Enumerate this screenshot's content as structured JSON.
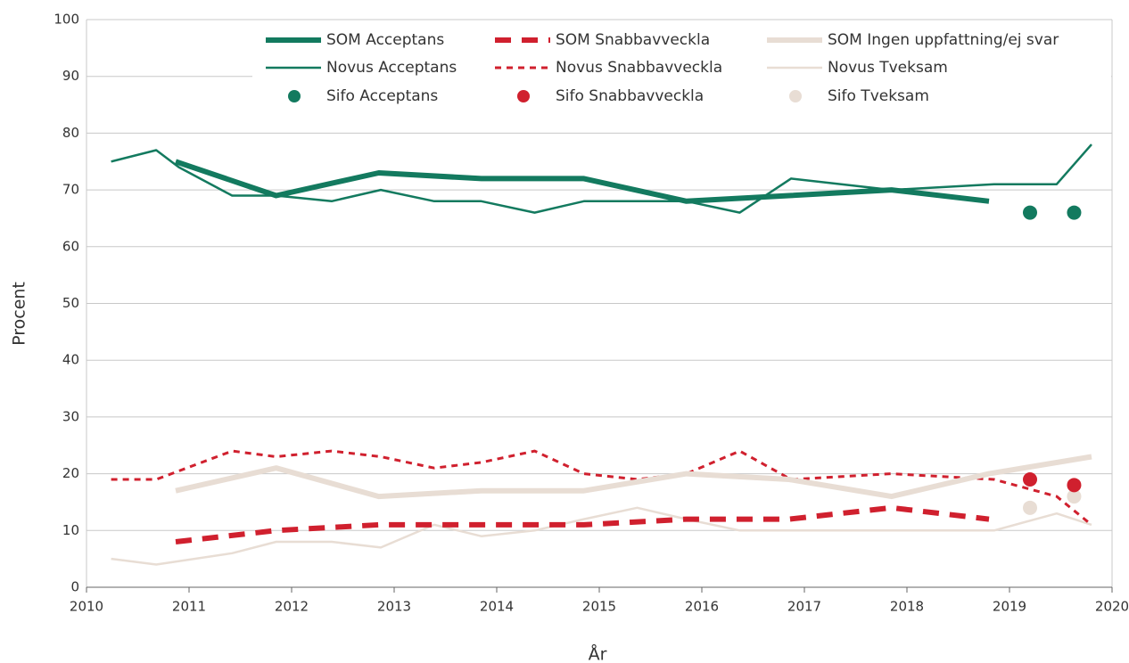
{
  "chart_data": {
    "type": "line",
    "x_label": "År",
    "y_label": "Procent",
    "xlim": [
      2010,
      2020
    ],
    "xticks": [
      2010,
      2011,
      2012,
      2013,
      2014,
      2015,
      2016,
      2017,
      2018,
      2019,
      2020
    ],
    "ylim": [
      0,
      100
    ],
    "yticks": [
      0,
      10,
      20,
      30,
      40,
      50,
      60,
      70,
      80,
      90,
      100
    ],
    "grid": true,
    "series": [
      {
        "name": "SOM Acceptans",
        "color": "#137a5f",
        "width": 6,
        "dash": "none",
        "x": [
          2010.87,
          2011.85,
          2012.85,
          2013.85,
          2014.85,
          2015.85,
          2016.85,
          2017.85,
          2018.8
        ],
        "values": [
          75,
          69,
          73,
          72,
          72,
          68,
          69,
          70,
          68
        ]
      },
      {
        "name": "SOM Snabbavveckla",
        "color": "#d0202e",
        "width": 6,
        "dash": "18 12",
        "x": [
          2010.87,
          2011.85,
          2012.85,
          2013.85,
          2014.85,
          2015.85,
          2016.85,
          2017.85,
          2018.8
        ],
        "values": [
          8,
          10,
          11,
          11,
          11,
          12,
          12,
          14,
          12
        ]
      },
      {
        "name": "SOM Ingen uppfattning/ej svar",
        "color": "#e8ddd4",
        "width": 6,
        "dash": "none",
        "x": [
          2010.87,
          2011.85,
          2012.85,
          2013.85,
          2014.85,
          2015.85,
          2016.85,
          2017.85,
          2018.8,
          2019.8
        ],
        "values": [
          17,
          21,
          16,
          17,
          17,
          20,
          19,
          16,
          20,
          23
        ]
      },
      {
        "name": "Novus Acceptans",
        "color": "#137a5f",
        "width": 2.5,
        "dash": "none",
        "x": [
          2010.24,
          2010.68,
          2010.9,
          2011.42,
          2011.85,
          2012.39,
          2012.87,
          2013.39,
          2013.85,
          2014.37,
          2014.85,
          2015.37,
          2015.85,
          2016.37,
          2016.87,
          2017.85,
          2018.85,
          2019.46,
          2019.8
        ],
        "values": [
          75,
          77,
          74,
          69,
          69,
          68,
          70,
          68,
          68,
          66,
          68,
          68,
          68,
          66,
          72,
          70,
          71,
          71,
          78
        ]
      },
      {
        "name": "Novus Snabbavveckla",
        "color": "#d0202e",
        "width": 3,
        "dash": "7 6",
        "x": [
          2010.24,
          2010.68,
          2011.42,
          2011.85,
          2012.39,
          2012.87,
          2013.39,
          2013.85,
          2014.37,
          2014.85,
          2015.37,
          2015.85,
          2016.37,
          2016.87,
          2017.85,
          2018.85,
          2019.46,
          2019.8
        ],
        "values": [
          19,
          19,
          24,
          23,
          24,
          23,
          21,
          22,
          24,
          20,
          19,
          20,
          24,
          19,
          20,
          19,
          16,
          11
        ]
      },
      {
        "name": "Novus Tveksam",
        "color": "#e8ddd4",
        "width": 2.5,
        "dash": "none",
        "x": [
          2010.24,
          2010.68,
          2011.42,
          2011.85,
          2012.39,
          2012.87,
          2013.39,
          2013.85,
          2014.37,
          2014.85,
          2015.37,
          2015.85,
          2016.37,
          2016.87,
          2017.85,
          2018.85,
          2019.46,
          2019.8
        ],
        "values": [
          5,
          4,
          6,
          8,
          8,
          7,
          11,
          9,
          10,
          12,
          14,
          12,
          10,
          10,
          10,
          10,
          13,
          11
        ]
      },
      {
        "name": "Sifo Acceptans",
        "color": "#137a5f",
        "marker": "dot",
        "x": [
          2019.2,
          2019.63
        ],
        "values": [
          66,
          66
        ]
      },
      {
        "name": "Sifo Snabbavveckla",
        "color": "#d0202e",
        "marker": "dot",
        "x": [
          2019.2,
          2019.63
        ],
        "values": [
          19,
          18
        ]
      },
      {
        "name": "Sifo Tveksam",
        "color": "#e8ddd4",
        "marker": "dot",
        "x": [
          2019.2,
          2019.63
        ],
        "values": [
          14,
          16
        ]
      }
    ]
  }
}
